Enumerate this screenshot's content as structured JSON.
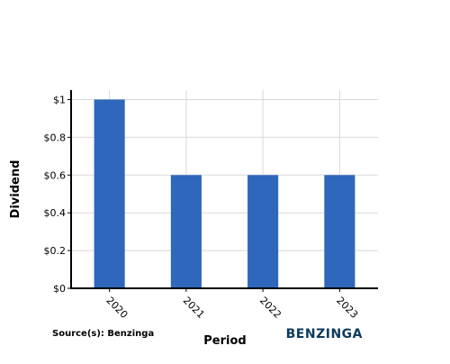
{
  "chart_data": {
    "type": "bar",
    "categories": [
      "2020",
      "2021",
      "2022",
      "2023"
    ],
    "values": [
      1.0,
      0.6,
      0.6,
      0.6
    ],
    "title": "",
    "xlabel": "Period",
    "ylabel": "Dividend",
    "ylim": [
      0,
      1.05
    ],
    "yticks": [
      0,
      0.2,
      0.4,
      0.6,
      0.8,
      1
    ],
    "ytick_labels": [
      "$0",
      "$0.2",
      "$0.4",
      "$0.6",
      "$0.8",
      "$1"
    ],
    "grid": true,
    "bar_color": "#2e67bb"
  },
  "footer": {
    "source": "Source(s): Benzinga",
    "brand": "BENZINGA"
  }
}
